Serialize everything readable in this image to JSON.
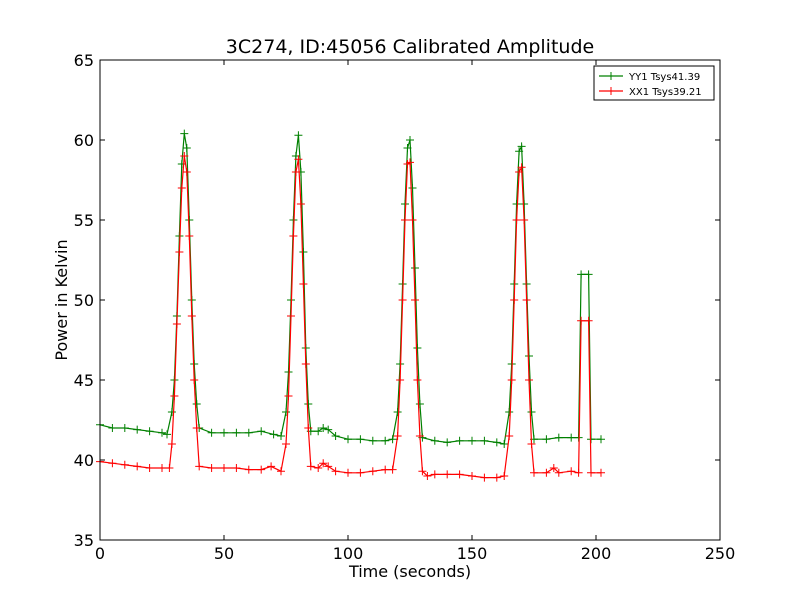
{
  "chart_data": {
    "type": "line",
    "title": "3C274, ID:45056 Calibrated Amplitude",
    "xlabel": "Time (seconds)",
    "ylabel": "Power in Kelvin",
    "xlim": [
      0,
      250
    ],
    "ylim": [
      35,
      65
    ],
    "xticks": [
      0,
      50,
      100,
      150,
      200,
      250
    ],
    "yticks": [
      35,
      40,
      45,
      50,
      55,
      60,
      65
    ],
    "grid": false,
    "legend_placement": "top-right",
    "marker": "+",
    "series": [
      {
        "name": "YY1 Tsys41.39",
        "color": "#008000",
        "points": [
          [
            0,
            42.2
          ],
          [
            5,
            42.0
          ],
          [
            10,
            42.0
          ],
          [
            15,
            41.9
          ],
          [
            20,
            41.8
          ],
          [
            25,
            41.7
          ],
          [
            27,
            41.6
          ],
          [
            29,
            43.0
          ],
          [
            30,
            45.0
          ],
          [
            31,
            49.0
          ],
          [
            32,
            54.0
          ],
          [
            33,
            58.5
          ],
          [
            34,
            60.4
          ],
          [
            35,
            59.5
          ],
          [
            36,
            55.0
          ],
          [
            37,
            50.0
          ],
          [
            38,
            46.0
          ],
          [
            39,
            43.5
          ],
          [
            40,
            42.0
          ],
          [
            45,
            41.7
          ],
          [
            50,
            41.7
          ],
          [
            55,
            41.7
          ],
          [
            60,
            41.7
          ],
          [
            65,
            41.8
          ],
          [
            70,
            41.6
          ],
          [
            73,
            41.5
          ],
          [
            75,
            43.0
          ],
          [
            76,
            45.5
          ],
          [
            77,
            50.0
          ],
          [
            78,
            55.0
          ],
          [
            79,
            59.0
          ],
          [
            80,
            60.3
          ],
          [
            81,
            58.0
          ],
          [
            82,
            53.0
          ],
          [
            83,
            47.0
          ],
          [
            84,
            43.5
          ],
          [
            85,
            41.8
          ],
          [
            88,
            41.8
          ],
          [
            90,
            42.0
          ],
          [
            92,
            41.9
          ],
          [
            95,
            41.5
          ],
          [
            100,
            41.3
          ],
          [
            105,
            41.3
          ],
          [
            110,
            41.2
          ],
          [
            115,
            41.2
          ],
          [
            118,
            41.3
          ],
          [
            120,
            43.0
          ],
          [
            121,
            46.0
          ],
          [
            122,
            51.0
          ],
          [
            123,
            56.0
          ],
          [
            124,
            59.5
          ],
          [
            125,
            60.0
          ],
          [
            126,
            57.0
          ],
          [
            127,
            52.0
          ],
          [
            128,
            47.0
          ],
          [
            129,
            43.5
          ],
          [
            130,
            41.4
          ],
          [
            135,
            41.2
          ],
          [
            140,
            41.1
          ],
          [
            145,
            41.2
          ],
          [
            150,
            41.2
          ],
          [
            155,
            41.2
          ],
          [
            160,
            41.1
          ],
          [
            163,
            41.0
          ],
          [
            165,
            43.0
          ],
          [
            166,
            46.0
          ],
          [
            167,
            51.0
          ],
          [
            168,
            56.0
          ],
          [
            169,
            59.3
          ],
          [
            170,
            59.6
          ],
          [
            171,
            56.0
          ],
          [
            172,
            51.0
          ],
          [
            173,
            46.5
          ],
          [
            174,
            43.0
          ],
          [
            175,
            41.3
          ],
          [
            180,
            41.3
          ],
          [
            185,
            41.4
          ],
          [
            190,
            41.4
          ],
          [
            193,
            41.4
          ],
          [
            194,
            51.6
          ],
          [
            197,
            51.6
          ],
          [
            198,
            41.3
          ],
          [
            202,
            41.3
          ]
        ]
      },
      {
        "name": "XX1 Tsys39.21",
        "color": "#ff0000",
        "points": [
          [
            0,
            39.9
          ],
          [
            5,
            39.8
          ],
          [
            10,
            39.7
          ],
          [
            15,
            39.6
          ],
          [
            20,
            39.5
          ],
          [
            25,
            39.5
          ],
          [
            28,
            39.5
          ],
          [
            29,
            41.0
          ],
          [
            30,
            44.0
          ],
          [
            31,
            48.5
          ],
          [
            32,
            53.0
          ],
          [
            33,
            57.0
          ],
          [
            34,
            59.0
          ],
          [
            35,
            58.0
          ],
          [
            36,
            54.0
          ],
          [
            37,
            49.0
          ],
          [
            38,
            45.0
          ],
          [
            39,
            42.0
          ],
          [
            40,
            39.6
          ],
          [
            45,
            39.5
          ],
          [
            50,
            39.5
          ],
          [
            55,
            39.5
          ],
          [
            60,
            39.4
          ],
          [
            65,
            39.4
          ],
          [
            69,
            39.6
          ],
          [
            73,
            39.3
          ],
          [
            75,
            41.0
          ],
          [
            76,
            44.0
          ],
          [
            77,
            49.0
          ],
          [
            78,
            54.0
          ],
          [
            79,
            58.0
          ],
          [
            80,
            58.8
          ],
          [
            81,
            56.0
          ],
          [
            82,
            51.0
          ],
          [
            83,
            46.0
          ],
          [
            84,
            42.0
          ],
          [
            85,
            39.6
          ],
          [
            88,
            39.5
          ],
          [
            90,
            39.8
          ],
          [
            92,
            39.6
          ],
          [
            95,
            39.3
          ],
          [
            100,
            39.2
          ],
          [
            105,
            39.2
          ],
          [
            110,
            39.3
          ],
          [
            115,
            39.4
          ],
          [
            118,
            39.4
          ],
          [
            120,
            41.5
          ],
          [
            121,
            45.0
          ],
          [
            122,
            50.0
          ],
          [
            123,
            55.0
          ],
          [
            124,
            58.5
          ],
          [
            125,
            58.6
          ],
          [
            126,
            55.0
          ],
          [
            127,
            50.0
          ],
          [
            128,
            45.0
          ],
          [
            129,
            41.5
          ],
          [
            130,
            39.3
          ],
          [
            132,
            39.0
          ],
          [
            135,
            39.1
          ],
          [
            140,
            39.1
          ],
          [
            145,
            39.1
          ],
          [
            150,
            39.0
          ],
          [
            155,
            38.9
          ],
          [
            160,
            38.9
          ],
          [
            163,
            39.0
          ],
          [
            165,
            41.5
          ],
          [
            166,
            45.0
          ],
          [
            167,
            50.0
          ],
          [
            168,
            55.0
          ],
          [
            169,
            58.0
          ],
          [
            170,
            58.3
          ],
          [
            171,
            55.0
          ],
          [
            172,
            50.0
          ],
          [
            173,
            45.0
          ],
          [
            174,
            41.0
          ],
          [
            175,
            39.2
          ],
          [
            180,
            39.2
          ],
          [
            183,
            39.5
          ],
          [
            185,
            39.2
          ],
          [
            190,
            39.3
          ],
          [
            193,
            39.2
          ],
          [
            194,
            48.7
          ],
          [
            197,
            48.7
          ],
          [
            198,
            39.2
          ],
          [
            202,
            39.2
          ]
        ]
      }
    ]
  }
}
